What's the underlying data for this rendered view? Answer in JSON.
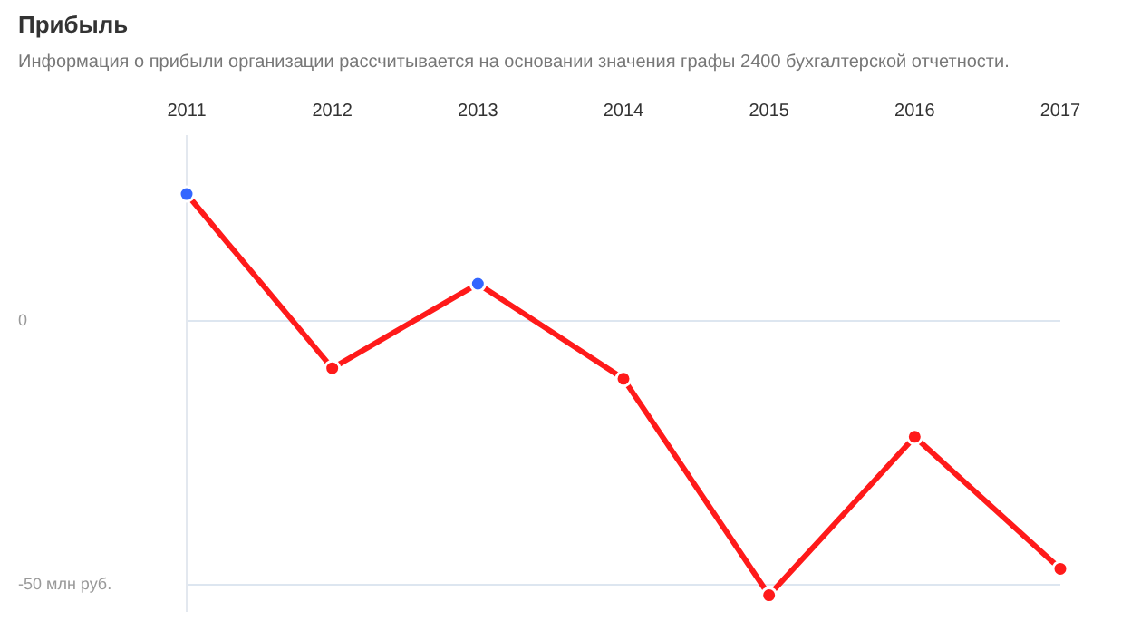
{
  "chart_data": {
    "type": "line",
    "title": "Прибыль",
    "subtitle": "Информация о прибыли организации рассчитывается на основании значения графы 2400 бухгалтерской отчетности.",
    "categories": [
      "2011",
      "2012",
      "2013",
      "2014",
      "2015",
      "2016",
      "2017"
    ],
    "series": [
      {
        "color": "#ff1a1a",
        "colors": [
          "#3366ff",
          "#ff1a1a",
          "#3366ff",
          "#ff1a1a",
          "#ff1a1a",
          "#ff1a1a",
          "#ff1a1a"
        ],
        "values": [
          24,
          -9,
          7,
          -11,
          -52,
          -22,
          -47
        ]
      }
    ],
    "ylim": [
      -55,
      35
    ],
    "yticks": [
      0,
      {
        "value": -50,
        "label": "-50 млн руб."
      }
    ],
    "grid": "y",
    "legend": false,
    "marker": "circle",
    "line_style": "solid"
  }
}
